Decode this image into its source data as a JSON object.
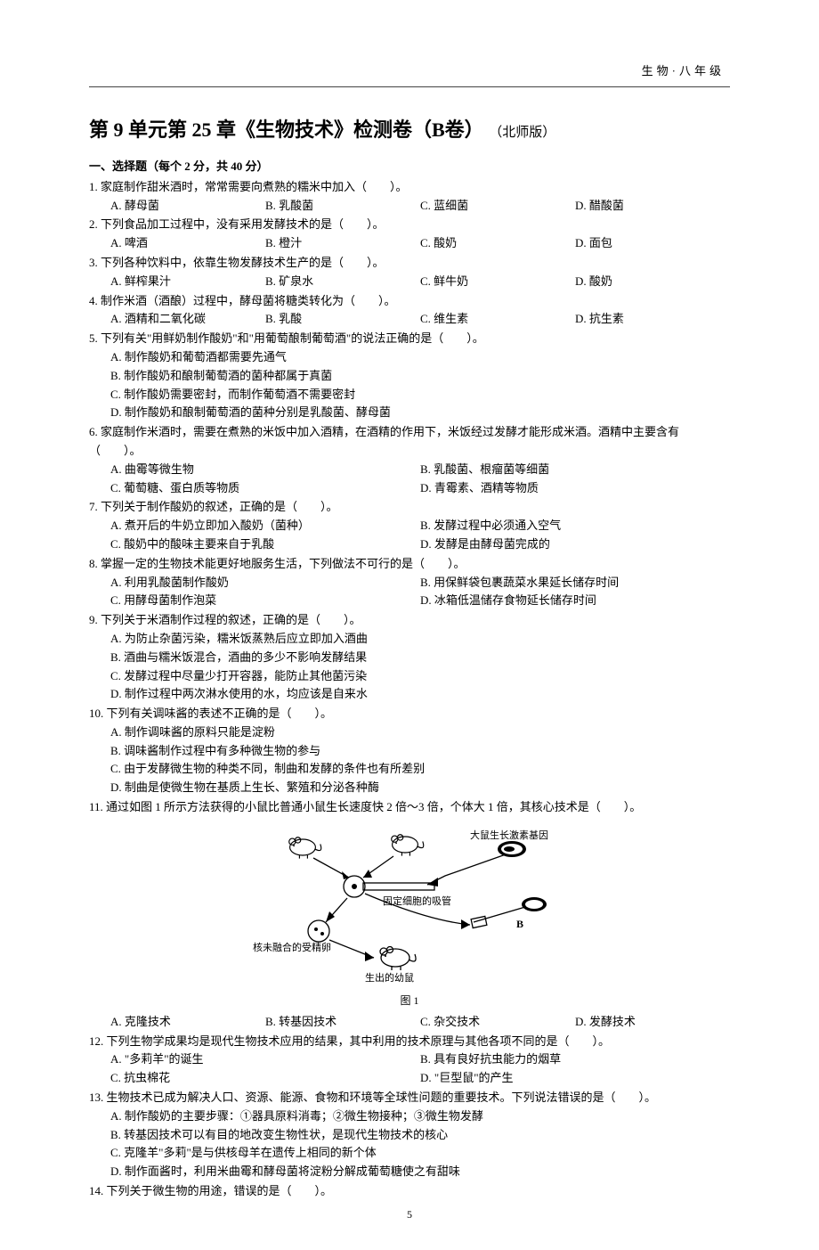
{
  "header_subject": "生物·八年级",
  "title_main": "第 9 单元第 25 章《生物技术》检测卷（B卷）",
  "title_suffix": "（北师版）",
  "section_header": "一、选择题（每个 2 分，共 40 分）",
  "blank": "（　　）",
  "period": "。",
  "fig1_caption": "图 1",
  "fig1_labels": {
    "gene": "大鼠生长激素基因",
    "pipette": "固定细胞的吸管",
    "egg": "核未融合的受精卵",
    "offspring": "生出的幼鼠",
    "b": "B"
  },
  "page_number": "5",
  "questions": [
    {
      "num": "1.",
      "stem": "家庭制作甜米酒时，常常需要向煮熟的糯米中加入",
      "opts": [
        "A. 酵母菌",
        "B. 乳酸菌",
        "C. 蓝细菌",
        "D. 醋酸菌"
      ],
      "layout": "four"
    },
    {
      "num": "2.",
      "stem": "下列食品加工过程中，没有采用发酵技术的是",
      "opts": [
        "A. 啤酒",
        "B. 橙汁",
        "C. 酸奶",
        "D. 面包"
      ],
      "layout": "four"
    },
    {
      "num": "3.",
      "stem": "下列各种饮料中，依靠生物发酵技术生产的是",
      "opts": [
        "A. 鲜榨果汁",
        "B. 矿泉水",
        "C. 鲜牛奶",
        "D. 酸奶"
      ],
      "layout": "four"
    },
    {
      "num": "4.",
      "stem": "制作米酒（酒酿）过程中，酵母菌将糖类转化为",
      "opts": [
        "A. 酒精和二氧化碳",
        "B. 乳酸",
        "C. 维生素",
        "D. 抗生素"
      ],
      "layout": "four"
    },
    {
      "num": "5.",
      "stem": "下列有关\"用鲜奶制作酸奶\"和\"用葡萄酿制葡萄酒\"的说法正确的是",
      "subs": [
        "A. 制作酸奶和葡萄酒都需要先通气",
        "B. 制作酸奶和酿制葡萄酒的菌种都属于真菌",
        "C. 制作酸奶需要密封，而制作葡萄酒不需要密封",
        "D. 制作酸奶和酿制葡萄酒的菌种分别是乳酸菌、酵母菌"
      ]
    },
    {
      "num": "6.",
      "stem_full": "家庭制作米酒时，需要在煮熟的米饭中加入酒精，在酒精的作用下，米饭经过发酵才能形成米酒。酒精中主要含有",
      "opts": [
        "A. 曲霉等微生物",
        "B. 乳酸菌、根瘤菌等细菌",
        "C. 葡萄糖、蛋白质等物质",
        "D. 青霉素、酒精等物质"
      ],
      "layout": "two"
    },
    {
      "num": "7.",
      "stem": "下列关于制作酸奶的叙述，正确的是",
      "opts": [
        "A. 煮开后的牛奶立即加入酸奶（菌种）",
        "B. 发酵过程中必须通入空气",
        "C. 酸奶中的酸味主要来自于乳酸",
        "D. 发酵是由酵母菌完成的"
      ],
      "layout": "two"
    },
    {
      "num": "8.",
      "stem": "掌握一定的生物技术能更好地服务生活，下列做法不可行的是",
      "opts": [
        "A. 利用乳酸菌制作酸奶",
        "B. 用保鲜袋包裹蔬菜水果延长储存时间",
        "C. 用酵母菌制作泡菜",
        "D. 冰箱低温储存食物延长储存时间"
      ],
      "layout": "two"
    },
    {
      "num": "9.",
      "stem": "下列关于米酒制作过程的叙述，正确的是",
      "subs": [
        "A. 为防止杂菌污染，糯米饭蒸熟后应立即加入酒曲",
        "B. 酒曲与糯米饭混合，酒曲的多少不影响发酵结果",
        "C. 发酵过程中尽量少打开容器，能防止其他菌污染",
        "D. 制作过程中两次淋水使用的水，均应该是自来水"
      ]
    },
    {
      "num": "10.",
      "stem": "下列有关调味酱的表述不正确的是",
      "subs": [
        "A. 制作调味酱的原料只能是淀粉",
        "B. 调味酱制作过程中有多种微生物的参与",
        "C. 由于发酵微生物的种类不同，制曲和发酵的条件也有所差别",
        "D. 制曲是使微生物在基质上生长、繁殖和分泌各种酶"
      ]
    },
    {
      "num": "11.",
      "stem_full": "通过如图 1 所示方法获得的小鼠比普通小鼠生长速度快 2 倍～3 倍，个体大 1 倍，其核心技术是",
      "opts": [
        "A. 克隆技术",
        "B. 转基因技术",
        "C. 杂交技术",
        "D. 发酵技术"
      ],
      "layout": "four",
      "figure": true
    },
    {
      "num": "12.",
      "stem": "下列生物学成果均是现代生物技术应用的结果，其中利用的技术原理与其他各项不同的是",
      "opts": [
        "A. \"多莉羊\"的诞生",
        "B. 具有良好抗虫能力的烟草",
        "C. 抗虫棉花",
        "D. \"巨型鼠\"的产生"
      ],
      "layout": "two"
    },
    {
      "num": "13.",
      "stem_full": "生物技术已成为解决人口、资源、能源、食物和环境等全球性问题的重要技术。下列说法错误的是",
      "subs": [
        "A. 制作酸奶的主要步骤：①器具原料消毒；②微生物接种；③微生物发酵",
        "B. 转基因技术可以有目的地改变生物性状，是现代生物技术的核心",
        "C. 克隆羊\"多莉\"是与供核母羊在遗传上相同的新个体",
        "D. 制作面酱时，利用米曲霉和酵母菌将淀粉分解成葡萄糖使之有甜味"
      ]
    },
    {
      "num": "14.",
      "stem": "下列关于微生物的用途，错误的是"
    }
  ]
}
